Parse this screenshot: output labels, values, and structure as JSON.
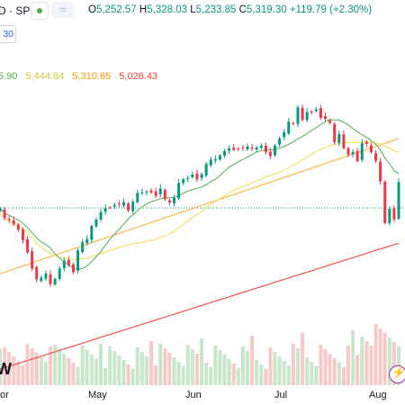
{
  "header": {
    "symbol_suffix": "D · SP",
    "compare_icon": "approx-icon",
    "compare_symbol": "≈",
    "open_label": "O",
    "open": "5,252.57",
    "high_label": "H",
    "high": "5,328.03",
    "low_label": "L",
    "low": "5,233.85",
    "close_label": "C",
    "close": "5,319.30",
    "change": "+119.79 (+2.30%)",
    "up_color": "#089981"
  },
  "badge": "30",
  "moving_averages": {
    "ma1": {
      "value": "5.90",
      "color": "#4caf50"
    },
    "ma2": {
      "value": "5,444.84",
      "color": "#e6d94a"
    },
    "ma3": {
      "value": "5,310.65",
      "color": "#ff9800"
    },
    "ma4": {
      "value": "5,026.43",
      "color": "#f44336"
    }
  },
  "watermark": "W",
  "x_axis": {
    "labels": [
      {
        "text": "or",
        "pos": 0
      },
      {
        "text": "May",
        "pos": 1
      },
      {
        "text": "Jun",
        "pos": 2
      },
      {
        "text": "Jul",
        "pos": 3
      },
      {
        "text": "Aug",
        "pos": 4
      }
    ]
  },
  "chart_data": {
    "type": "candlestick",
    "series": [
      {
        "name": "price",
        "values": [
          5243,
          5205,
          5198,
          5180,
          5160,
          5120,
          5072,
          5010,
          4968,
          4975,
          4991,
          4950,
          4970,
          5010,
          5040,
          5022,
          4996,
          5080,
          5112,
          5124,
          5175,
          5199,
          5228,
          5243,
          5245,
          5256,
          5259,
          5266,
          5235,
          5268,
          5302,
          5304,
          5308,
          5304,
          5291,
          5320,
          5278,
          5265,
          5283,
          5341,
          5355,
          5360,
          5373,
          5354,
          5375,
          5414,
          5431,
          5433,
          5447,
          5464,
          5474,
          5469,
          5473,
          5476,
          5482,
          5473,
          5478,
          5485,
          5460,
          5445,
          5485,
          5512,
          5537,
          5577,
          5572,
          5633,
          5584,
          5615,
          5616,
          5625,
          5593,
          5589,
          5573,
          5498,
          5530,
          5475,
          5450,
          5461,
          5425,
          5494,
          5492,
          5460,
          5426,
          5347,
          5186,
          5241,
          5200,
          5344
        ]
      },
      {
        "name": "MA short",
        "values": []
      },
      {
        "name": "MA 50",
        "values": []
      },
      {
        "name": "MA 100",
        "values": []
      },
      {
        "name": "MA 200",
        "values": []
      }
    ],
    "volume_color_up": "#c8e6c9",
    "volume_color_down": "#f8c9c9",
    "grid": false
  }
}
